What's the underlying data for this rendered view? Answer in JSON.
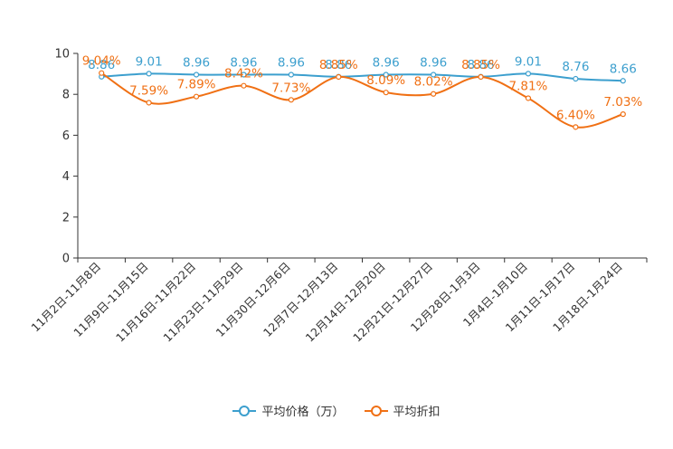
{
  "chart_data": {
    "type": "line",
    "categories": [
      "11月2日-11月8日",
      "11月9日-11月15日",
      "11月16日-11月22日",
      "11月23日-11月29日",
      "11月30日-12月6日",
      "12月7日-12月13日",
      "12月14日-12月20日",
      "12月21日-12月27日",
      "12月28日-1月3日",
      "1月4日-1月10日",
      "1月11日-1月17日",
      "1月18日-1月24日"
    ],
    "series": [
      {
        "name": "平均价格（万）",
        "color": "#3c9fce",
        "values": [
          8.86,
          9.01,
          8.96,
          8.96,
          8.96,
          8.86,
          8.96,
          8.96,
          8.86,
          9.01,
          8.76,
          8.66
        ],
        "labels": [
          "8.86",
          "9.01",
          "8.96",
          "8.96",
          "8.96",
          "8.86",
          "8.96",
          "8.96",
          "8.86",
          "9.01",
          "8.76",
          "8.66"
        ]
      },
      {
        "name": "平均折扣",
        "color": "#f07014",
        "values": [
          9.04,
          7.59,
          7.89,
          8.42,
          7.73,
          8.85,
          8.09,
          8.02,
          8.85,
          7.81,
          6.4,
          7.03
        ],
        "labels": [
          "9.04%",
          "7.59%",
          "7.89%",
          "8.42%",
          "7.73%",
          "8.85%",
          "8.09%",
          "8.02%",
          "8.85%",
          "7.81%",
          "6.40%",
          "7.03%"
        ]
      }
    ],
    "y_ticks": [
      "0",
      "2",
      "4",
      "6",
      "8",
      "10"
    ],
    "ylim": [
      0,
      10
    ],
    "grid": false,
    "legend_position": "bottom"
  }
}
